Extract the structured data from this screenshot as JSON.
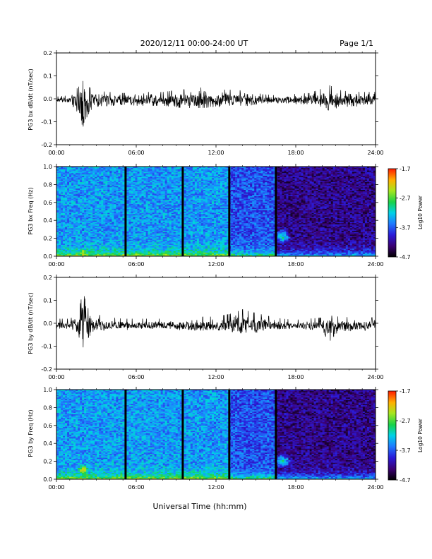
{
  "header": {
    "title": "2020/12/11  00:00-24:00 UT",
    "page": "Page 1/1"
  },
  "footer": {
    "xlabel": "Universal Time (hh:mm)"
  },
  "chart_data": [
    {
      "type": "line",
      "panel": "bx-timeseries",
      "ylabel": "PG3 bx dB/dt (nT/sec)",
      "xlim_hours": [
        0,
        24
      ],
      "xticks": [
        "00:00",
        "06:00",
        "12:00",
        "18:00",
        "24:00"
      ],
      "ylim": [
        -0.2,
        0.2
      ],
      "yticks": [
        "-0.2",
        "-0.1",
        "0.0",
        "0.1",
        "0.2"
      ],
      "series": [
        {
          "color": "#000000",
          "envelope_hours": [
            0,
            1,
            1.8,
            2.0,
            2.2,
            2.5,
            3,
            4,
            5,
            6,
            8,
            9.5,
            11,
            12,
            13,
            14.5,
            15.5,
            16.5,
            17.5,
            19,
            20,
            20.5,
            21.5,
            23,
            24
          ],
          "envelope_min": [
            -0.01,
            -0.015,
            -0.08,
            -0.17,
            -0.09,
            -0.06,
            -0.035,
            -0.03,
            -0.025,
            -0.03,
            -0.03,
            -0.04,
            -0.04,
            -0.035,
            -0.04,
            -0.03,
            -0.02,
            -0.015,
            -0.02,
            -0.025,
            -0.04,
            -0.05,
            -0.035,
            -0.03,
            -0.03
          ],
          "envelope_max": [
            0.01,
            0.015,
            0.06,
            0.09,
            0.07,
            0.05,
            0.035,
            0.03,
            0.025,
            0.03,
            0.03,
            0.04,
            0.05,
            0.04,
            0.04,
            0.035,
            0.02,
            0.015,
            0.02,
            0.025,
            0.045,
            0.06,
            0.035,
            0.03,
            0.03
          ]
        }
      ]
    },
    {
      "type": "heatmap",
      "panel": "bx-spectrogram",
      "ylabel": "PG3 bx Freq (Hz)",
      "xlim_hours": [
        0,
        24
      ],
      "xticks": [
        "00:00",
        "06:00",
        "12:00",
        "18:00",
        "24:00"
      ],
      "ylim": [
        0,
        1.0
      ],
      "yticks": [
        "0.0",
        "0.2",
        "0.4",
        "0.6",
        "0.8",
        "1.0"
      ],
      "colorbar": {
        "label": "Log10 Power",
        "range": [
          -4.7,
          -1.7
        ],
        "ticks": [
          "-1.7",
          "-2.7",
          "-3.7",
          "-4.7"
        ]
      },
      "data_gaps_hours": [
        5.2,
        9.5,
        13.0,
        16.5
      ],
      "hotspots": [
        {
          "t": 2.0,
          "f": 0.03,
          "value": -2.4
        },
        {
          "t": 17.0,
          "f": 0.22,
          "value": -3.1
        }
      ]
    },
    {
      "type": "line",
      "panel": "by-timeseries",
      "ylabel": "PG3 by dB/dt (nT/sec)",
      "xlim_hours": [
        0,
        24
      ],
      "xticks": [
        "00:00",
        "06:00",
        "12:00",
        "18:00",
        "24:00"
      ],
      "ylim": [
        -0.2,
        0.2
      ],
      "yticks": [
        "-0.2",
        "-0.1",
        "0.0",
        "0.1",
        "0.2"
      ],
      "series": [
        {
          "color": "#000000",
          "envelope_hours": [
            0,
            1,
            1.6,
            2.0,
            2.3,
            2.7,
            3.5,
            5,
            8,
            10,
            12,
            13,
            14,
            15,
            16,
            17,
            18,
            20,
            20.5,
            21,
            22.5,
            24
          ],
          "envelope_min": [
            -0.02,
            -0.02,
            -0.04,
            -0.13,
            -0.07,
            -0.04,
            -0.025,
            -0.02,
            -0.02,
            -0.025,
            -0.03,
            -0.035,
            -0.045,
            -0.04,
            -0.025,
            -0.02,
            -0.015,
            -0.03,
            -0.08,
            -0.04,
            -0.025,
            -0.025
          ],
          "envelope_max": [
            0.02,
            0.02,
            0.04,
            0.14,
            0.07,
            0.05,
            0.03,
            0.02,
            0.02,
            0.025,
            0.03,
            0.04,
            0.06,
            0.045,
            0.03,
            0.02,
            0.015,
            0.025,
            0.035,
            0.03,
            0.025,
            0.025
          ]
        }
      ]
    },
    {
      "type": "heatmap",
      "panel": "by-spectrogram",
      "ylabel": "PG3 by Freq (Hz)",
      "xlim_hours": [
        0,
        24
      ],
      "xticks": [
        "00:00",
        "06:00",
        "12:00",
        "18:00",
        "24:00"
      ],
      "ylim": [
        0,
        1.0
      ],
      "yticks": [
        "0.0",
        "0.2",
        "0.4",
        "0.6",
        "0.8",
        "1.0"
      ],
      "colorbar": {
        "label": "Log10 Power",
        "range": [
          -4.7,
          -1.7
        ],
        "ticks": [
          "-1.7",
          "-2.7",
          "-3.7",
          "-4.7"
        ]
      },
      "data_gaps_hours": [
        5.2,
        9.5,
        13.0,
        16.5
      ],
      "hotspots": [
        {
          "t": 2.0,
          "f": 0.1,
          "value": -2.3
        },
        {
          "t": 17.0,
          "f": 0.2,
          "value": -3.1
        }
      ]
    }
  ]
}
